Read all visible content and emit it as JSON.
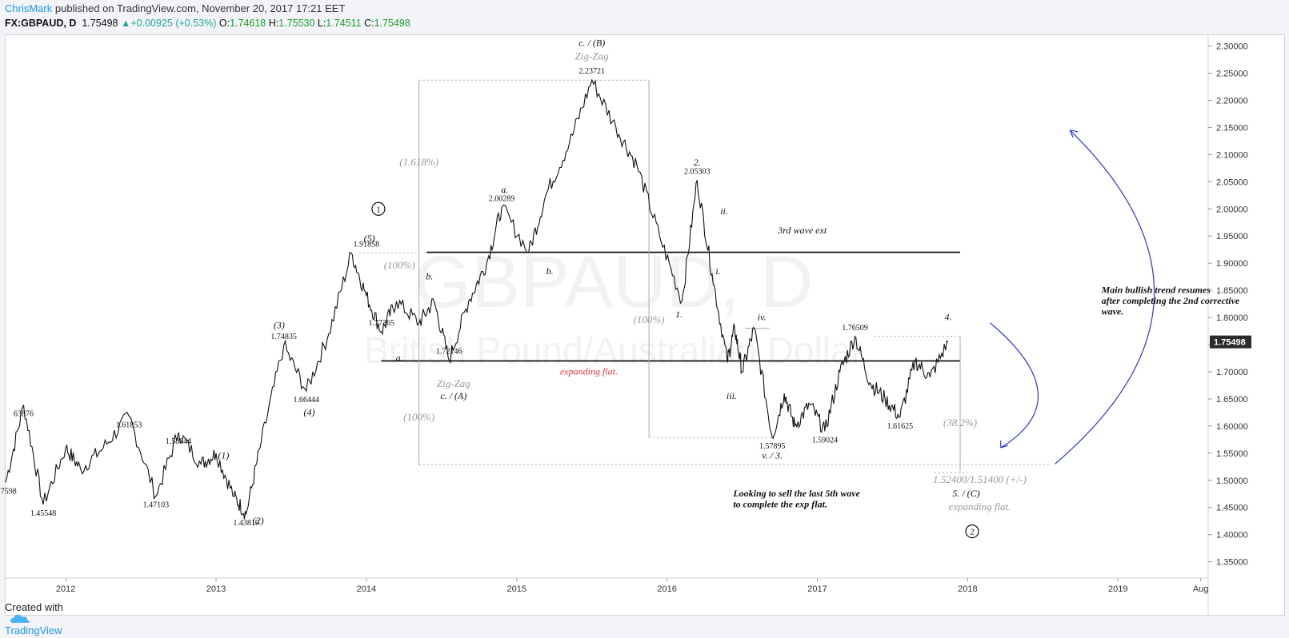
{
  "header": {
    "author": "ChrisMark",
    "published": "published on TradingView.com, November 20, 2017 17:21 EET",
    "symbol": "FX:GBPAUD, D",
    "last": "1.75498",
    "change": "+0.00925 (+0.53%)",
    "o_label": "O:",
    "o": "1.74618",
    "h_label": "H:",
    "h": "1.75530",
    "l_label": "L:",
    "l": "1.74511",
    "c_label": "C:",
    "c": "1.75498"
  },
  "footer": {
    "created_with": "Created with",
    "brand": "TradingView"
  },
  "watermark": {
    "symbol": "GBPAUD, D",
    "name": "British Pound/Australian Dollar"
  },
  "chart_data": {
    "type": "line",
    "symbol": "GBPAUD",
    "interval": "D",
    "x_axis": {
      "ticks": [
        "2012",
        "2013",
        "2014",
        "2015",
        "2016",
        "2017",
        "2018",
        "2019",
        "Aug"
      ],
      "range": [
        2011.6,
        2019.6
      ]
    },
    "y_axis": {
      "range": [
        1.32,
        2.32
      ],
      "ticks": [
        "2.30000",
        "2.25000",
        "2.20000",
        "2.15000",
        "2.10000",
        "2.05000",
        "2.00000",
        "1.95000",
        "1.90000",
        "1.85000",
        "1.80000",
        "1.75000",
        "1.70000",
        "1.65000",
        "1.60000",
        "1.55000",
        "1.50000",
        "1.45000",
        "1.40000",
        "1.35000"
      ],
      "last_price_label": "1.75498",
      "last_price": 1.75498
    },
    "series": [
      {
        "x": [
          2011.6,
          2011.72,
          2011.85,
          2012.0,
          2012.1,
          2012.25,
          2012.42,
          2012.6,
          2012.75,
          2012.9,
          2013.0,
          2013.12,
          2013.2,
          2013.3,
          2013.45,
          2013.6,
          2013.75,
          2013.9,
          2014.0,
          2014.1,
          2014.2,
          2014.35,
          2014.45,
          2014.55,
          2014.68,
          2014.8,
          2014.9,
          2015.08,
          2015.2,
          2015.35,
          2015.5,
          2015.66,
          2015.8,
          2015.95,
          2016.1,
          2016.2,
          2016.3,
          2016.4,
          2016.45,
          2016.5,
          2016.58,
          2016.7,
          2016.78,
          2016.85,
          2016.95,
          2017.05,
          2017.15,
          2017.25,
          2017.35,
          2017.45,
          2017.55,
          2017.65,
          2017.75,
          2017.87
        ],
        "y": [
          1.496,
          1.6388,
          1.4555,
          1.56,
          1.52,
          1.56,
          1.6185,
          1.471,
          1.5884,
          1.53,
          1.55,
          1.47,
          1.4381,
          1.57,
          1.7484,
          1.6644,
          1.77,
          1.9186,
          1.84,
          1.7737,
          1.83,
          1.79,
          1.83,
          1.7215,
          1.83,
          1.9,
          2.0029,
          1.92,
          2.03,
          2.12,
          2.2372,
          2.15,
          2.08,
          1.95,
          1.83,
          2.053,
          1.88,
          1.72,
          1.78,
          1.7,
          1.78,
          1.579,
          1.66,
          1.6,
          1.64,
          1.5902,
          1.7,
          1.7651,
          1.68,
          1.65,
          1.6163,
          1.72,
          1.69,
          1.755
        ]
      }
    ],
    "price_labels": [
      {
        "text": "63876",
        "x": 2011.72,
        "y": 1.6388
      },
      {
        "text": "7598",
        "x": 2011.62,
        "y": 1.496
      },
      {
        "text": "1.45548",
        "x": 2011.85,
        "y": 1.4555
      },
      {
        "text": "1.61853",
        "x": 2012.42,
        "y": 1.6185
      },
      {
        "text": "1.47103",
        "x": 2012.6,
        "y": 1.471
      },
      {
        "text": "1.58844",
        "x": 2012.75,
        "y": 1.5884
      },
      {
        "text": "1.43810",
        "x": 2013.2,
        "y": 1.4381
      },
      {
        "text": "1.74835",
        "x": 2013.45,
        "y": 1.7484
      },
      {
        "text": "1.66444",
        "x": 2013.6,
        "y": 1.6644
      },
      {
        "text": "1.91858",
        "x": 2014.0,
        "y": 1.9186
      },
      {
        "text": "1.77365",
        "x": 2014.1,
        "y": 1.7737
      },
      {
        "text": "1.72146",
        "x": 2014.55,
        "y": 1.7215
      },
      {
        "text": "2.00289",
        "x": 2014.9,
        "y": 2.0029
      },
      {
        "text": "2.23721",
        "x": 2015.5,
        "y": 2.2372
      },
      {
        "text": "2.05303",
        "x": 2016.2,
        "y": 2.053
      },
      {
        "text": "1.57895",
        "x": 2016.7,
        "y": 1.579
      },
      {
        "text": "1.59024",
        "x": 2017.05,
        "y": 1.5902
      },
      {
        "text": "1.76509",
        "x": 2017.25,
        "y": 1.7651
      },
      {
        "text": "1.61625",
        "x": 2017.55,
        "y": 1.6163
      }
    ],
    "wave_labels": [
      {
        "text": "(1)",
        "x": 2013.05,
        "y": 1.54
      },
      {
        "text": "(2)",
        "x": 2013.28,
        "y": 1.42
      },
      {
        "text": "(3)",
        "x": 2013.42,
        "y": 1.78
      },
      {
        "text": "(4)",
        "x": 2013.62,
        "y": 1.62
      },
      {
        "text": "(5)",
        "x": 2014.02,
        "y": 1.94
      },
      {
        "text": "a.",
        "x": 2014.22,
        "y": 1.72
      },
      {
        "text": "b.",
        "x": 2014.42,
        "y": 1.87
      },
      {
        "text": "c. / (A)",
        "x": 2014.58,
        "y": 1.65
      },
      {
        "text": "a.",
        "x": 2014.92,
        "y": 2.03
      },
      {
        "text": "b.",
        "x": 2015.22,
        "y": 1.88
      },
      {
        "text": "c. / (B)",
        "x": 2015.5,
        "y": 2.3
      },
      {
        "text": "1.",
        "x": 2016.08,
        "y": 1.8
      },
      {
        "text": "2.",
        "x": 2016.2,
        "y": 2.08
      },
      {
        "text": "i.",
        "x": 2016.34,
        "y": 1.88
      },
      {
        "text": "ii.",
        "x": 2016.38,
        "y": 1.99
      },
      {
        "text": "iii.",
        "x": 2016.43,
        "y": 1.65
      },
      {
        "text": "iv.",
        "x": 2016.63,
        "y": 1.795
      },
      {
        "text": "v. / 3.",
        "x": 2016.7,
        "y": 1.54
      },
      {
        "text": "4.",
        "x": 2017.87,
        "y": 1.795
      },
      {
        "text": "5. / (C)",
        "x": 2017.99,
        "y": 1.47
      }
    ],
    "circled_labels": [
      {
        "text": "1",
        "x": 2014.08,
        "y": 2.0
      },
      {
        "text": "2",
        "x": 2018.03,
        "y": 1.406
      }
    ],
    "grey_labels": [
      {
        "text": "Zig-Zag",
        "x": 2015.5,
        "y": 2.275
      },
      {
        "text": "Zig-Zag",
        "x": 2014.58,
        "y": 1.672
      },
      {
        "text": "(1.618%)",
        "x": 2014.35,
        "y": 2.08
      },
      {
        "text": "(100%)",
        "x": 2014.22,
        "y": 1.89
      },
      {
        "text": "(100%)",
        "x": 2014.35,
        "y": 1.61
      },
      {
        "text": "(100%)",
        "x": 2015.88,
        "y": 1.79
      },
      {
        "text": "(38.2%)",
        "x": 2017.95,
        "y": 1.6
      },
      {
        "text": "1.52400/1.51400 (+/-)",
        "x": 2018.08,
        "y": 1.495
      },
      {
        "text": "expanding flat.",
        "x": 2018.08,
        "y": 1.445
      }
    ],
    "annotations": [
      {
        "text": "3rd wave ext",
        "x": 2016.9,
        "y": 1.955,
        "style": "italic"
      },
      {
        "text": "expanding flat.",
        "x": 2015.48,
        "y": 1.695,
        "style": "italic-red"
      },
      {
        "text": "Main bullish trend resumes",
        "x": 2018.89,
        "y": 1.845,
        "style": "bold-italic"
      },
      {
        "text": "after completing the 2nd corrective",
        "x": 2018.89,
        "y": 1.825,
        "style": "bold-italic"
      },
      {
        "text": "wave.",
        "x": 2018.89,
        "y": 1.805,
        "style": "bold-italic"
      },
      {
        "text": "Looking to sell the last 5th wave",
        "x": 2016.44,
        "y": 1.47,
        "style": "bold-italic"
      },
      {
        "text": "to complete the exp flat.",
        "x": 2016.44,
        "y": 1.45,
        "style": "bold-italic"
      }
    ],
    "hlines": [
      {
        "y": 1.92,
        "x1": 2014.4,
        "x2": 2017.95
      },
      {
        "y": 1.72,
        "x1": 2014.1,
        "x2": 2017.95
      }
    ],
    "legend": "none",
    "grid": false
  }
}
